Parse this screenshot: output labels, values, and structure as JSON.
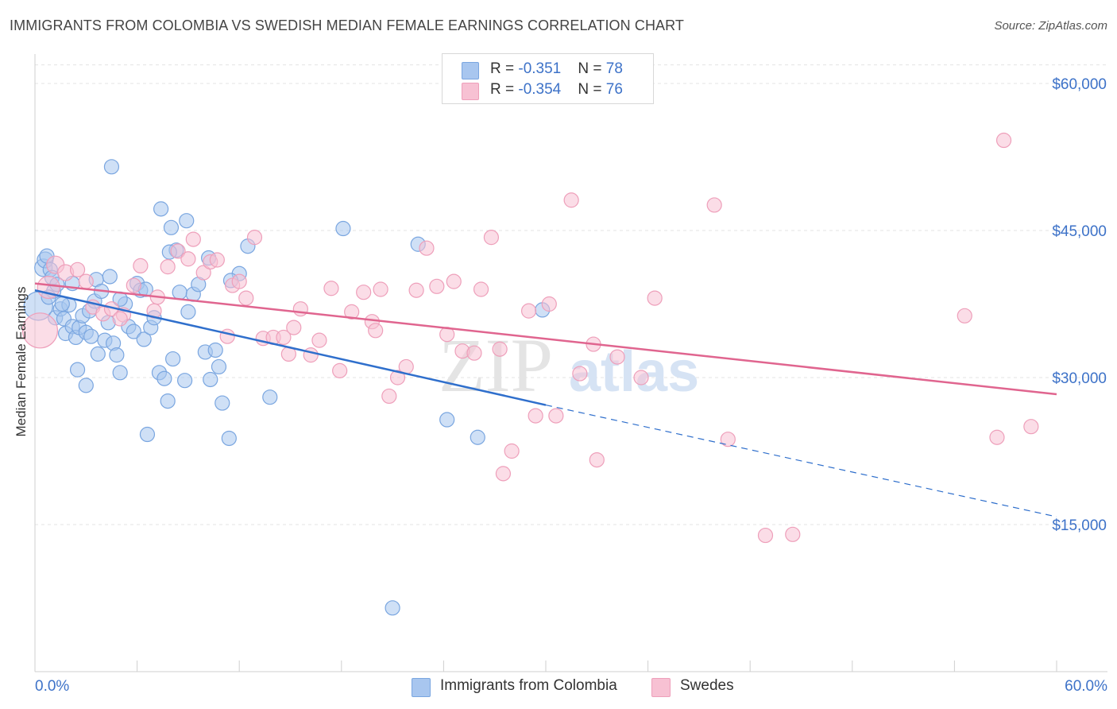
{
  "title": "IMMIGRANTS FROM COLOMBIA VS SWEDISH MEDIAN FEMALE EARNINGS CORRELATION CHART",
  "source": "Source: ZipAtlas.com",
  "watermark": {
    "zip": "ZIP",
    "atlas": "atlas"
  },
  "legend": {
    "rows": [
      {
        "r_label": "R = ",
        "r_value": "-0.351",
        "n_label": "N = ",
        "n_value": "78",
        "color": "#a8c6ef",
        "border": "#7aa6e0"
      },
      {
        "r_label": "R = ",
        "r_value": "-0.354",
        "n_label": "N = ",
        "n_value": "76",
        "color": "#f7c1d3",
        "border": "#ee9fba"
      }
    ]
  },
  "bottom_legend": [
    {
      "label": "Immigrants from Colombia",
      "color": "#a8c6ef",
      "border": "#7aa6e0"
    },
    {
      "label": "Swedes",
      "color": "#f7c1d3",
      "border": "#ee9fba"
    }
  ],
  "chart_data": {
    "type": "scatter",
    "ylabel": "Median Female Earnings",
    "xlim": [
      0,
      60
    ],
    "ylim": [
      0,
      63000
    ],
    "x_tick_labels": {
      "min": "0.0%",
      "max": "60.0%"
    },
    "y_ticks": [
      {
        "value": 15000,
        "label": "$15,000"
      },
      {
        "value": 30000,
        "label": "$30,000"
      },
      {
        "value": 45000,
        "label": "$45,000"
      },
      {
        "value": 60000,
        "label": "$60,000"
      }
    ],
    "grid": true,
    "series": [
      {
        "name": "Immigrants from Colombia",
        "color": "#7aa6e0",
        "fill": "#a8c6ef",
        "trend_color": "#2f6fcc",
        "trend": {
          "x0": 0,
          "y0": 38900,
          "x1": 30,
          "y1": 27200,
          "dash_to_x": 60,
          "dash_to_y": 15800
        },
        "points": [
          [
            0.2,
            37300
          ],
          [
            0.5,
            41200
          ],
          [
            0.6,
            42000
          ],
          [
            0.7,
            42400
          ],
          [
            0.9,
            41000
          ],
          [
            1.0,
            40200
          ],
          [
            1.1,
            38800
          ],
          [
            1.2,
            36100
          ],
          [
            1.3,
            39500
          ],
          [
            1.5,
            37000
          ],
          [
            1.7,
            36000
          ],
          [
            1.8,
            34500
          ],
          [
            2.0,
            37400
          ],
          [
            2.2,
            35200
          ],
          [
            2.4,
            34100
          ],
          [
            2.6,
            35100
          ],
          [
            2.8,
            36300
          ],
          [
            3.0,
            34600
          ],
          [
            3.2,
            36800
          ],
          [
            3.3,
            34200
          ],
          [
            3.5,
            37800
          ],
          [
            3.6,
            40000
          ],
          [
            3.9,
            38800
          ],
          [
            4.1,
            33800
          ],
          [
            4.4,
            40300
          ],
          [
            4.6,
            33500
          ],
          [
            4.8,
            32300
          ],
          [
            5.0,
            30500
          ],
          [
            5.3,
            37500
          ],
          [
            5.5,
            35200
          ],
          [
            5.8,
            34700
          ],
          [
            6.0,
            39600
          ],
          [
            6.2,
            38900
          ],
          [
            6.4,
            33900
          ],
          [
            6.6,
            24200
          ],
          [
            6.8,
            35100
          ],
          [
            7.0,
            36100
          ],
          [
            7.3,
            30500
          ],
          [
            7.6,
            29900
          ],
          [
            7.8,
            27600
          ],
          [
            8.1,
            31900
          ],
          [
            8.3,
            43000
          ],
          [
            8.5,
            38700
          ],
          [
            8.8,
            29700
          ],
          [
            9.0,
            36700
          ],
          [
            9.3,
            38500
          ],
          [
            9.6,
            39500
          ],
          [
            10.0,
            32600
          ],
          [
            10.3,
            29800
          ],
          [
            10.6,
            32800
          ],
          [
            10.8,
            31100
          ],
          [
            11.0,
            27400
          ],
          [
            11.4,
            23800
          ],
          [
            12.0,
            40600
          ],
          [
            12.5,
            43400
          ],
          [
            4.5,
            51500
          ],
          [
            7.4,
            47200
          ],
          [
            8.0,
            45300
          ],
          [
            8.9,
            46000
          ],
          [
            10.2,
            42200
          ],
          [
            7.9,
            42800
          ],
          [
            11.5,
            39900
          ],
          [
            13.8,
            28000
          ],
          [
            6.5,
            39000
          ],
          [
            5.0,
            38000
          ],
          [
            3.7,
            32400
          ],
          [
            2.5,
            30800
          ],
          [
            1.6,
            37500
          ],
          [
            0.8,
            38200
          ],
          [
            2.2,
            39600
          ],
          [
            3.0,
            29200
          ],
          [
            4.3,
            35600
          ],
          [
            18.1,
            45200
          ],
          [
            22.5,
            43600
          ],
          [
            21.0,
            6500
          ],
          [
            24.2,
            25700
          ],
          [
            26.0,
            23900
          ],
          [
            29.8,
            36900
          ]
        ],
        "point_radius": [
          18,
          11,
          10,
          9,
          9,
          9,
          9,
          9,
          9,
          9,
          9,
          9,
          9,
          9,
          9,
          9,
          9,
          9,
          9,
          9,
          9,
          9,
          9,
          9,
          9,
          9,
          9,
          9,
          9,
          9,
          9,
          9,
          9,
          9,
          9,
          9,
          9,
          9,
          9,
          9,
          9,
          9,
          9,
          9,
          9,
          9,
          9,
          9,
          9,
          9,
          9,
          9,
          9,
          9,
          9,
          9,
          9,
          9,
          9,
          9,
          9,
          9,
          9,
          9,
          9,
          9,
          9,
          9,
          9,
          9,
          9,
          9,
          9,
          9,
          9,
          9,
          9,
          9
        ]
      },
      {
        "name": "Swedes",
        "color": "#ee9fba",
        "fill": "#f7c1d3",
        "trend_color": "#e0658f",
        "trend": {
          "x0": 0,
          "y0": 39600,
          "x1": 60,
          "y1": 28300
        },
        "points": [
          [
            0.3,
            34800
          ],
          [
            0.8,
            39200
          ],
          [
            1.2,
            41500
          ],
          [
            1.8,
            40700
          ],
          [
            2.5,
            41000
          ],
          [
            3.0,
            39800
          ],
          [
            3.4,
            37200
          ],
          [
            4.0,
            36500
          ],
          [
            4.5,
            37000
          ],
          [
            5.2,
            36400
          ],
          [
            5.8,
            39400
          ],
          [
            6.2,
            41400
          ],
          [
            7.2,
            38200
          ],
          [
            7.8,
            41300
          ],
          [
            8.4,
            42900
          ],
          [
            9.0,
            42100
          ],
          [
            9.3,
            44100
          ],
          [
            9.9,
            40700
          ],
          [
            10.3,
            41800
          ],
          [
            10.7,
            42000
          ],
          [
            11.3,
            34200
          ],
          [
            11.6,
            39400
          ],
          [
            12.0,
            39800
          ],
          [
            12.4,
            38100
          ],
          [
            12.9,
            44300
          ],
          [
            13.4,
            34000
          ],
          [
            14.0,
            34100
          ],
          [
            14.6,
            34100
          ],
          [
            14.9,
            32400
          ],
          [
            15.2,
            35100
          ],
          [
            15.6,
            37000
          ],
          [
            16.2,
            32300
          ],
          [
            16.7,
            33800
          ],
          [
            17.4,
            39100
          ],
          [
            17.9,
            30700
          ],
          [
            18.6,
            36700
          ],
          [
            19.3,
            38700
          ],
          [
            19.8,
            35700
          ],
          [
            20.3,
            39000
          ],
          [
            20.8,
            28100
          ],
          [
            21.3,
            30000
          ],
          [
            21.8,
            31100
          ],
          [
            22.4,
            38900
          ],
          [
            23.0,
            43200
          ],
          [
            23.6,
            39300
          ],
          [
            24.2,
            34400
          ],
          [
            24.6,
            39800
          ],
          [
            25.1,
            32700
          ],
          [
            25.8,
            32500
          ],
          [
            26.2,
            39000
          ],
          [
            26.8,
            44300
          ],
          [
            27.3,
            32900
          ],
          [
            28.0,
            22500
          ],
          [
            27.5,
            20200
          ],
          [
            29.0,
            36800
          ],
          [
            29.4,
            26100
          ],
          [
            30.2,
            37500
          ],
          [
            30.6,
            26100
          ],
          [
            31.5,
            48100
          ],
          [
            32.0,
            30400
          ],
          [
            32.8,
            33400
          ],
          [
            33.0,
            21600
          ],
          [
            34.2,
            32100
          ],
          [
            35.6,
            30000
          ],
          [
            36.4,
            38100
          ],
          [
            39.9,
            47600
          ],
          [
            40.7,
            23700
          ],
          [
            42.9,
            13900
          ],
          [
            44.5,
            14000
          ],
          [
            54.6,
            36300
          ],
          [
            56.5,
            23900
          ],
          [
            56.9,
            54200
          ],
          [
            58.5,
            25000
          ],
          [
            20.0,
            34800
          ],
          [
            7.0,
            36800
          ],
          [
            5.0,
            36000
          ]
        ],
        "point_radius": [
          22,
          14,
          11,
          10,
          9,
          9,
          9,
          9,
          9,
          9,
          9,
          9,
          9,
          9,
          9,
          9,
          9,
          9,
          9,
          9,
          9,
          9,
          9,
          9,
          9,
          9,
          9,
          9,
          9,
          9,
          9,
          9,
          9,
          9,
          9,
          9,
          9,
          9,
          9,
          9,
          9,
          9,
          9,
          9,
          9,
          9,
          9,
          9,
          9,
          9,
          9,
          9,
          9,
          9,
          9,
          9,
          9,
          9,
          9,
          9,
          9,
          9,
          9,
          9,
          9,
          9,
          9,
          9,
          9,
          9,
          9,
          9,
          9,
          9,
          9,
          9
        ]
      }
    ]
  }
}
